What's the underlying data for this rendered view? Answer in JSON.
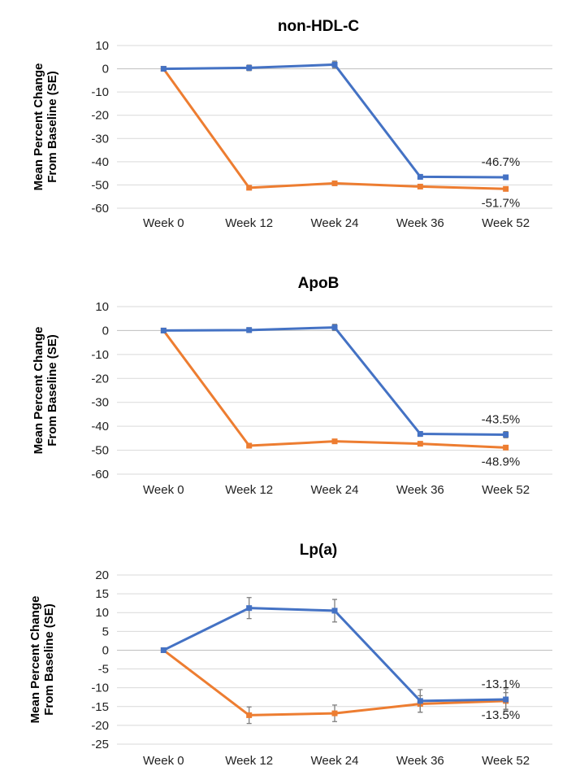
{
  "chart_data": [
    {
      "type": "line",
      "title": "non-HDL-C",
      "ylabel": [
        "Mean Percent Change",
        "From Baseline (SE)"
      ],
      "ylim": [
        -60,
        10
      ],
      "ytick_step": 10,
      "categories": [
        "Week 0",
        "Week 12",
        "Week 24",
        "Week 36",
        "Week 52"
      ],
      "colors": {
        "blue": "#4472C4",
        "orange": "#ED7D31"
      },
      "series": [
        {
          "key": "blue",
          "values": [
            0,
            0.4,
            1.8,
            -46.5,
            -46.7
          ],
          "errors": [
            0,
            1.2,
            1.5,
            1.0,
            1.0
          ]
        },
        {
          "key": "orange",
          "values": [
            0,
            -51.2,
            -49.3,
            -50.7,
            -51.7
          ],
          "errors": [
            0,
            0.8,
            0.8,
            0.8,
            0.8
          ]
        }
      ],
      "annotations": [
        {
          "text": "-46.7%",
          "series": "blue",
          "category": "Week 52"
        },
        {
          "text": "-51.7%",
          "series": "orange",
          "category": "Week 52"
        }
      ],
      "grid": true
    },
    {
      "type": "line",
      "title": "ApoB",
      "ylabel": [
        "Mean Percent Change",
        "From Baseline (SE)"
      ],
      "ylim": [
        -60,
        10
      ],
      "ytick_step": 10,
      "categories": [
        "Week 0",
        "Week 12",
        "Week 24",
        "Week 36",
        "Week 52"
      ],
      "colors": {
        "blue": "#4472C4",
        "orange": "#ED7D31"
      },
      "series": [
        {
          "key": "blue",
          "values": [
            0,
            0.2,
            1.3,
            -43.2,
            -43.5
          ],
          "errors": [
            0,
            1.0,
            1.3,
            1.0,
            1.3
          ]
        },
        {
          "key": "orange",
          "values": [
            0,
            -48.1,
            -46.3,
            -47.3,
            -48.9
          ],
          "errors": [
            0,
            0.8,
            0.8,
            0.8,
            0.8
          ]
        }
      ],
      "annotations": [
        {
          "text": "-43.5%",
          "series": "blue",
          "category": "Week 52"
        },
        {
          "text": "-48.9%",
          "series": "orange",
          "category": "Week 52"
        }
      ],
      "grid": true
    },
    {
      "type": "line",
      "title": "Lp(a)",
      "ylabel": [
        "Mean Percent Change",
        "From Baseline (SE)"
      ],
      "ylim": [
        -25,
        20
      ],
      "ytick_step": 5,
      "categories": [
        "Week 0",
        "Week 12",
        "Week 24",
        "Week 36",
        "Week 52"
      ],
      "colors": {
        "blue": "#4472C4",
        "orange": "#ED7D31"
      },
      "series": [
        {
          "key": "blue",
          "values": [
            0,
            11.2,
            10.5,
            -13.5,
            -13.1
          ],
          "errors": [
            0,
            2.8,
            3.0,
            3.0,
            2.8
          ]
        },
        {
          "key": "orange",
          "values": [
            0,
            -17.3,
            -16.8,
            -14.3,
            -13.5
          ],
          "errors": [
            0,
            2.2,
            2.2,
            2.2,
            2.2
          ]
        }
      ],
      "annotations": [
        {
          "text": "-13.1%",
          "series": "blue",
          "category": "Week 52"
        },
        {
          "text": "-13.5%",
          "series": "orange",
          "category": "Week 52"
        }
      ],
      "grid": true
    }
  ]
}
